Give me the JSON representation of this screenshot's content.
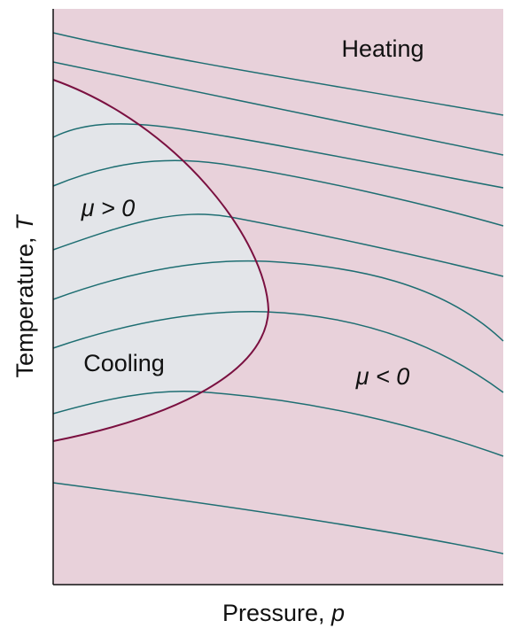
{
  "regions": [
    {
      "label": "Heating"
    },
    {
      "label": "μ > 0"
    },
    {
      "label": "Cooling"
    },
    {
      "label": "μ < 0"
    }
  ],
  "axes": {
    "x_label": {
      "text": "Pressure,",
      "symbol": "p"
    },
    "y_label": {
      "text": "Temperature,",
      "symbol": "T"
    }
  }
}
